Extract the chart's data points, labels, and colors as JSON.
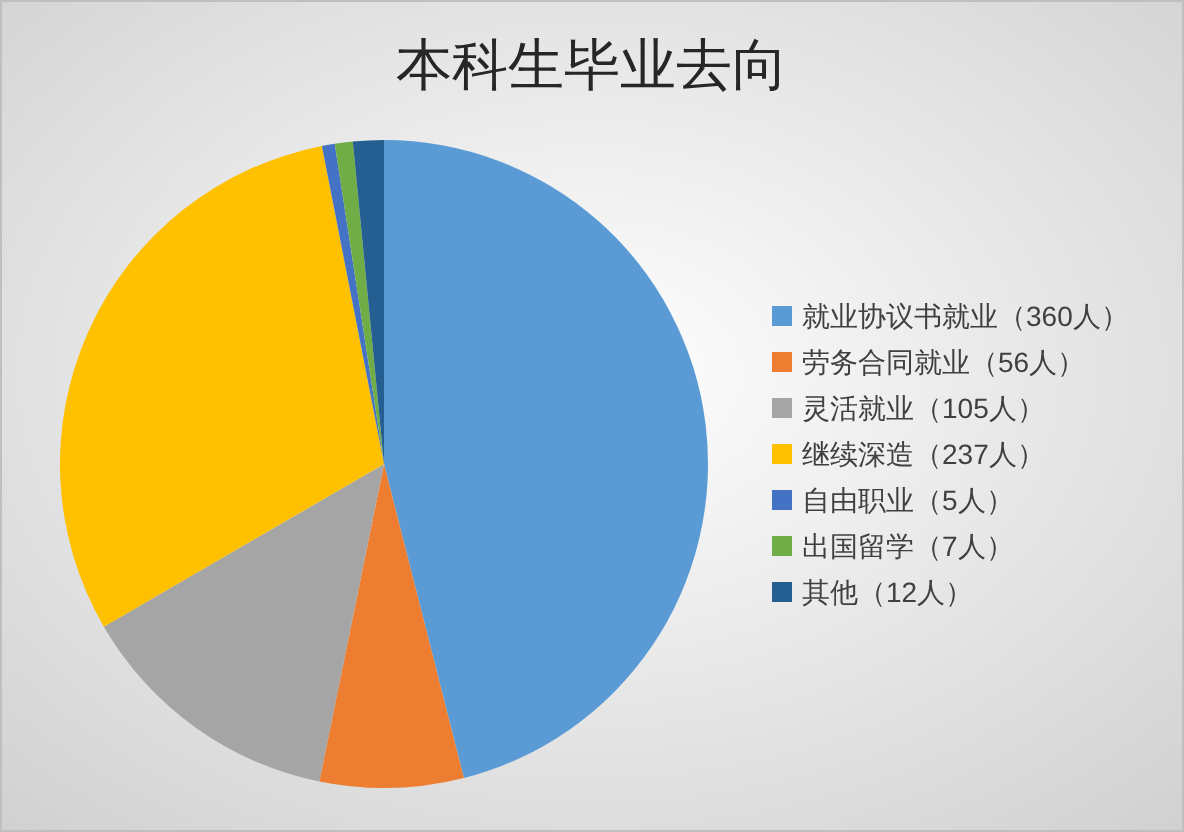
{
  "chart_data": {
    "type": "pie",
    "title": "本科生毕业去向",
    "categories": [
      "就业协议书就业（360人）",
      "劳务合同就业（56人）",
      "灵活就业（105人）",
      "继续深造（237人）",
      "自由职业（5人）",
      "出国留学（7人）",
      "其他（12人）"
    ],
    "values": [
      360,
      56,
      105,
      237,
      5,
      7,
      12
    ],
    "colors": [
      "#5b9bd5",
      "#ed7d31",
      "#a5a5a5",
      "#ffc000",
      "#4472c4",
      "#70ad47",
      "#255e91"
    ],
    "legend": "right"
  }
}
